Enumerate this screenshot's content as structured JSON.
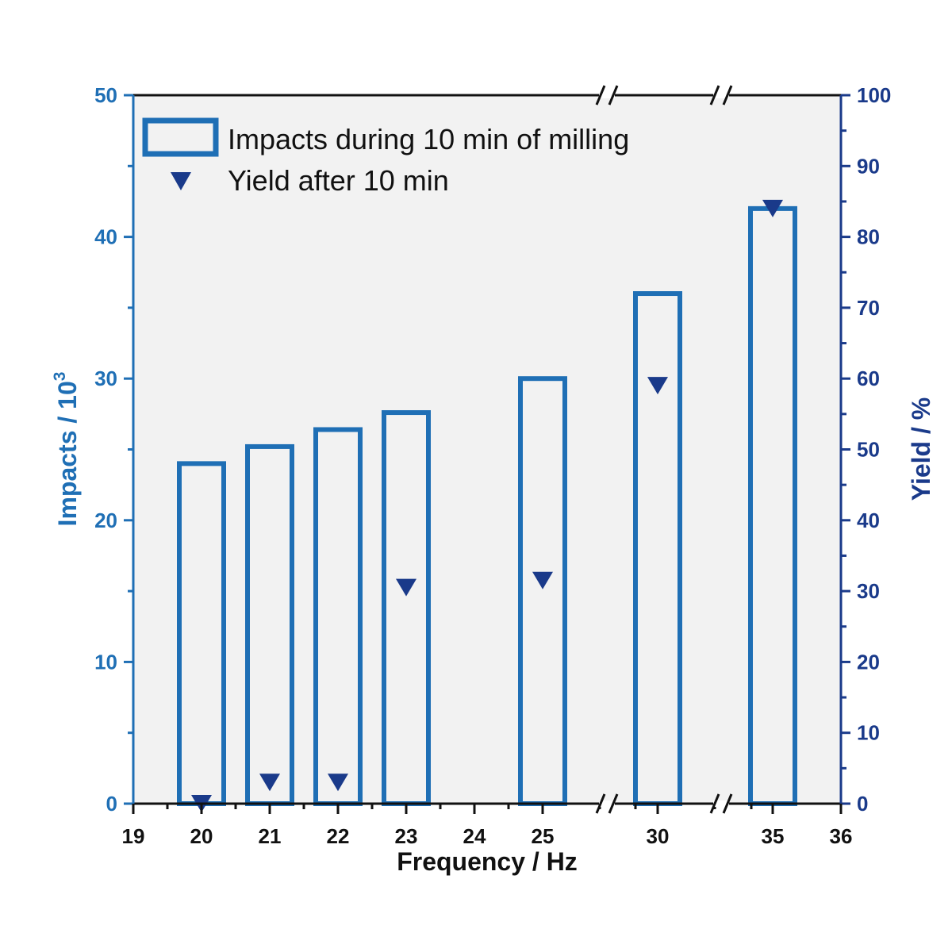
{
  "chart_data": {
    "type": "bar",
    "x_axis": {
      "label": "Frequency / Hz",
      "tick_labels": [
        "19",
        "20",
        "21",
        "22",
        "23",
        "24",
        "25",
        "30",
        "35",
        "36"
      ],
      "breaks": [
        "between 25 and 30",
        "between 30 and 35"
      ],
      "color": "#111111"
    },
    "y_left": {
      "label": "Impacts / 10",
      "label_superscript": "3",
      "ylim": [
        0,
        50
      ],
      "ticks": [
        0,
        10,
        20,
        30,
        40,
        50
      ],
      "color": "#1f6fb5"
    },
    "y_right": {
      "label": "Yield / %",
      "ylim": [
        0,
        100
      ],
      "ticks": [
        0,
        10,
        20,
        30,
        40,
        50,
        60,
        70,
        80,
        90,
        100
      ],
      "color": "#1a3a8a"
    },
    "categories": [
      "20",
      "21",
      "22",
      "23",
      "25",
      "30",
      "35"
    ],
    "series": [
      {
        "name": "Impacts during 10 min of milling",
        "kind": "hollow-bar",
        "axis": "left",
        "color": "#1f6fb5",
        "values": [
          24.0,
          25.2,
          26.4,
          27.6,
          30.0,
          36.0,
          42.0
        ]
      },
      {
        "name": "Yield after 10 min",
        "kind": "triangle-down-marker",
        "axis": "right",
        "color": "#1a3a8a",
        "values": [
          0,
          3,
          3,
          30.5,
          31.5,
          59,
          84
        ]
      }
    ],
    "legend_position": "top-left",
    "grid": false,
    "plot_background": "#f2f2f2"
  }
}
